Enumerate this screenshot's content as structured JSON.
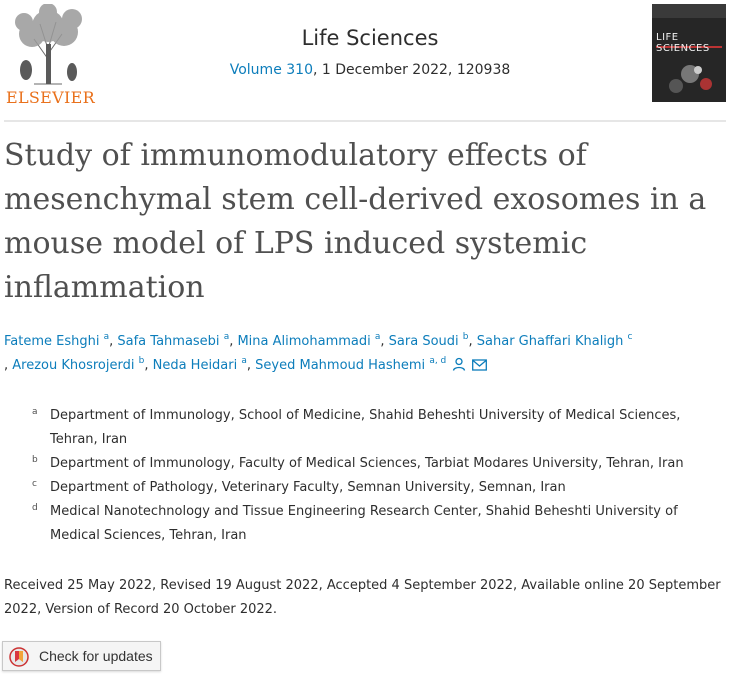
{
  "journal": {
    "publisher": "ELSEVIER",
    "title": "Life Sciences",
    "volume_link": "Volume 310",
    "citation_rest": ", 1 December 2022, 120938",
    "cover_title": "LIFE SCIENCES"
  },
  "article": {
    "title": "Study of immunomodulatory effects of mesenchymal stem cell-derived exosomes in a mouse model of LPS induced systemic inflammation"
  },
  "authors": [
    {
      "name": "Fateme Eshghi",
      "sup": "a"
    },
    {
      "name": "Safa Tahmasebi",
      "sup": "a"
    },
    {
      "name": "Mina Alimohammadi",
      "sup": "a"
    },
    {
      "name": "Sara Soudi",
      "sup": "b"
    },
    {
      "name": "Sahar Ghaffari Khaligh",
      "sup": "c"
    },
    {
      "name": "Arezou Khosrojerdi",
      "sup": "b"
    },
    {
      "name": "Neda Heidari",
      "sup": "a"
    },
    {
      "name": "Seyed Mahmoud Hashemi",
      "sup": "a, d"
    }
  ],
  "affiliations": [
    {
      "label": "a",
      "text": "Department of Immunology, School of Medicine, Shahid Beheshti University of Medical Sciences, Tehran, Iran"
    },
    {
      "label": "b",
      "text": "Department of Immunology, Faculty of Medical Sciences, Tarbiat Modares University, Tehran, Iran"
    },
    {
      "label": "c",
      "text": "Department of Pathology, Veterinary Faculty, Semnan University, Semnan, Iran"
    },
    {
      "label": "d",
      "text": "Medical Nanotechnology and Tissue Engineering Research Center, Shahid Beheshti University of Medical Sciences, Tehran, Iran"
    }
  ],
  "history": "Received 25 May 2022, Revised 19 August 2022, Accepted 4 September 2022, Available online 20 September 2022, Version of Record 20 October 2022.",
  "check_updates": {
    "label": "Check for updates"
  },
  "colors": {
    "link": "#0c7dbb",
    "publisher": "#e9711c",
    "title": "#505050"
  }
}
